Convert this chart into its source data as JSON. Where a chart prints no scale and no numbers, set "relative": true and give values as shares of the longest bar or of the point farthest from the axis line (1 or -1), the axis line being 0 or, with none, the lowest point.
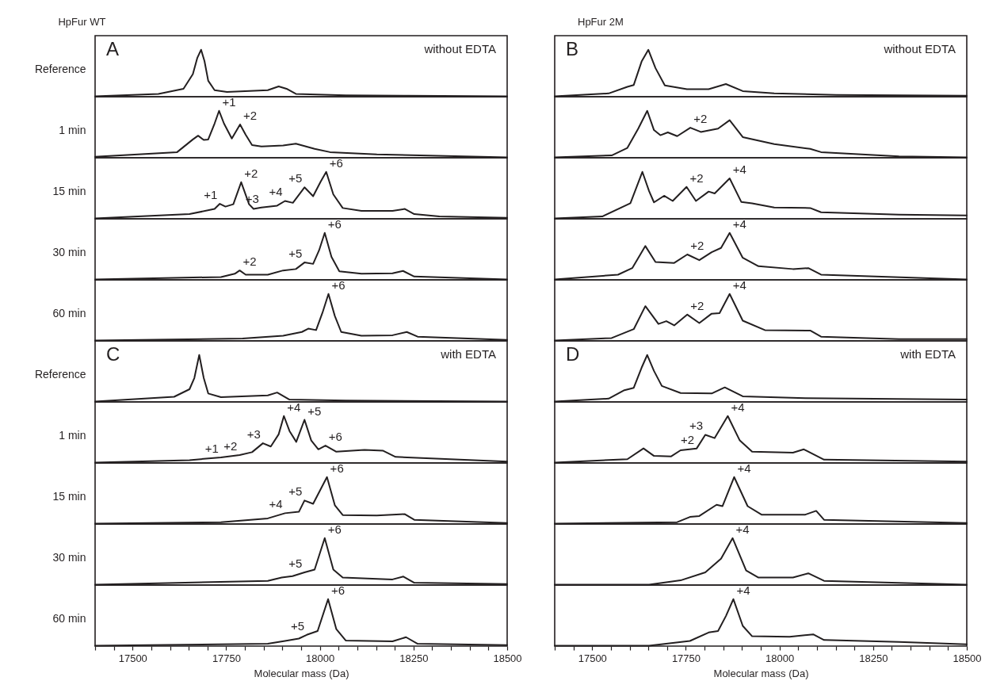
{
  "chart_data": [
    {
      "type": "line",
      "relative": true,
      "title": "HpFur WT",
      "ylabel": "Reference",
      "xlim": [
        17400,
        18500
      ],
      "annotations": [
        "A",
        "without EDTA"
      ],
      "x": [
        17400,
        17569,
        17636,
        17661,
        17673,
        17683,
        17692,
        17702,
        17719,
        17752,
        17861,
        17890,
        17911,
        17936,
        18069,
        18236,
        18500
      ],
      "series": [
        {
          "color": "#231f20",
          "values": [
            0.01,
            0.06,
            0.17,
            0.48,
            0.83,
            1.0,
            0.76,
            0.34,
            0.14,
            0.1,
            0.14,
            0.22,
            0.17,
            0.06,
            0.03,
            0.02,
            0.01
          ]
        }
      ]
    },
    {
      "type": "line",
      "relative": true,
      "ylabel": "1 min",
      "xlim": [
        17400,
        18500
      ],
      "annotations": [
        {
          "text": "+1",
          "x": 17731,
          "y": 1.0
        },
        {
          "text": "+2",
          "x": 17787,
          "y": 0.71
        }
      ],
      "x": [
        17400,
        17619,
        17661,
        17675,
        17690,
        17702,
        17719,
        17731,
        17744,
        17765,
        17787,
        17802,
        17819,
        17844,
        17902,
        17936,
        17986,
        18027,
        18152,
        18500
      ],
      "series": [
        {
          "color": "#231f20",
          "values": [
            0.02,
            0.12,
            0.39,
            0.47,
            0.38,
            0.39,
            0.73,
            1.0,
            0.73,
            0.41,
            0.71,
            0.49,
            0.27,
            0.24,
            0.26,
            0.3,
            0.19,
            0.12,
            0.07,
            0.01
          ]
        }
      ]
    },
    {
      "type": "line",
      "relative": true,
      "ylabel": "15 min",
      "xlim": [
        17400,
        18500
      ],
      "annotations": [
        {
          "text": "+1",
          "x": 17733,
          "y": 0.32
        },
        {
          "text": "+2",
          "x": 17790,
          "y": 0.78
        },
        {
          "text": "+3",
          "x": 17844,
          "y": 0.24
        },
        {
          "text": "+4",
          "x": 17907,
          "y": 0.38
        },
        {
          "text": "+5",
          "x": 17959,
          "y": 0.67
        },
        {
          "text": "+6",
          "x": 18017,
          "y": 1.0
        }
      ],
      "x": [
        17400,
        17652,
        17719,
        17733,
        17748,
        17769,
        17790,
        17811,
        17823,
        17844,
        17886,
        17907,
        17928,
        17959,
        17982,
        18002,
        18017,
        18036,
        18061,
        18111,
        18194,
        18227,
        18252,
        18319,
        18500
      ],
      "series": [
        {
          "color": "#231f20",
          "values": [
            0.01,
            0.1,
            0.21,
            0.32,
            0.26,
            0.31,
            0.78,
            0.31,
            0.21,
            0.24,
            0.28,
            0.38,
            0.34,
            0.67,
            0.48,
            0.79,
            1.0,
            0.52,
            0.23,
            0.17,
            0.17,
            0.21,
            0.1,
            0.05,
            0.02
          ]
        }
      ]
    },
    {
      "type": "line",
      "relative": true,
      "ylabel": "30 min",
      "xlim": [
        17400,
        18500
      ],
      "annotations": [
        {
          "text": "+2",
          "x": 17786,
          "y": 0.2
        },
        {
          "text": "+5",
          "x": 17959,
          "y": 0.37
        },
        {
          "text": "+6",
          "x": 18013,
          "y": 1.0
        }
      ],
      "x": [
        17400,
        17736,
        17773,
        17786,
        17802,
        17861,
        17902,
        17936,
        17959,
        17982,
        17998,
        18013,
        18031,
        18052,
        18111,
        18194,
        18222,
        18252,
        18500
      ],
      "series": [
        {
          "color": "#231f20",
          "values": [
            0.01,
            0.06,
            0.13,
            0.2,
            0.11,
            0.11,
            0.2,
            0.23,
            0.37,
            0.34,
            0.63,
            1.0,
            0.49,
            0.18,
            0.13,
            0.14,
            0.19,
            0.07,
            0.01
          ]
        }
      ]
    },
    {
      "type": "line",
      "relative": true,
      "ylabel": "60 min",
      "xlim": [
        17400,
        18500
      ],
      "annotations": [
        {
          "text": "+6",
          "x": 18023,
          "y": 1.0
        }
      ],
      "x": [
        17400,
        17794,
        17902,
        17952,
        17969,
        17990,
        18007,
        18023,
        18040,
        18057,
        18111,
        18194,
        18232,
        18261,
        18500
      ],
      "series": [
        {
          "color": "#231f20",
          "values": [
            0.01,
            0.05,
            0.11,
            0.19,
            0.26,
            0.23,
            0.6,
            1.0,
            0.53,
            0.19,
            0.11,
            0.12,
            0.19,
            0.09,
            0.02
          ]
        }
      ]
    },
    {
      "type": "line",
      "relative": true,
      "title": "HpFur 2M",
      "xlim": [
        17400,
        18500
      ],
      "annotations": [
        "B",
        "without EDTA"
      ],
      "x": [
        17400,
        17544,
        17594,
        17611,
        17632,
        17650,
        17669,
        17694,
        17753,
        17811,
        17857,
        17902,
        17986,
        18152,
        18500
      ],
      "series": [
        {
          "color": "#231f20",
          "values": [
            0.01,
            0.07,
            0.21,
            0.25,
            0.75,
            1.0,
            0.61,
            0.24,
            0.16,
            0.16,
            0.27,
            0.12,
            0.07,
            0.04,
            0.02
          ]
        }
      ]
    },
    {
      "type": "line",
      "relative": true,
      "xlim": [
        17400,
        18500
      ],
      "annotations": [
        {
          "text": "+2",
          "x": 17762,
          "y": 0.64
        }
      ],
      "x": [
        17400,
        17552,
        17594,
        17623,
        17647,
        17665,
        17682,
        17702,
        17727,
        17762,
        17790,
        17836,
        17867,
        17902,
        17986,
        18082,
        18111,
        18319,
        18500
      ],
      "series": [
        {
          "color": "#231f20",
          "values": [
            0.01,
            0.05,
            0.21,
            0.62,
            1.0,
            0.59,
            0.48,
            0.54,
            0.46,
            0.64,
            0.55,
            0.62,
            0.8,
            0.44,
            0.29,
            0.19,
            0.12,
            0.03,
            0.01
          ]
        }
      ]
    },
    {
      "type": "line",
      "relative": true,
      "xlim": [
        17400,
        18500
      ],
      "annotations": [
        {
          "text": "+2",
          "x": 17752,
          "y": 0.68
        },
        {
          "text": "+4",
          "x": 17867,
          "y": 0.86
        }
      ],
      "x": [
        17400,
        17527,
        17602,
        17634,
        17652,
        17665,
        17692,
        17715,
        17752,
        17777,
        17811,
        17827,
        17867,
        17898,
        17927,
        17986,
        18082,
        18111,
        18319,
        18500
      ],
      "series": [
        {
          "color": "#231f20",
          "values": [
            0.01,
            0.05,
            0.33,
            1.0,
            0.59,
            0.35,
            0.49,
            0.38,
            0.68,
            0.38,
            0.58,
            0.54,
            0.86,
            0.36,
            0.33,
            0.24,
            0.23,
            0.14,
            0.09,
            0.07
          ]
        }
      ]
    },
    {
      "type": "line",
      "relative": true,
      "xlim": [
        17400,
        18500
      ],
      "annotations": [
        {
          "text": "+2",
          "x": 17754,
          "y": 0.54
        },
        {
          "text": "+4",
          "x": 17867,
          "y": 1.0
        }
      ],
      "x": [
        17400,
        17569,
        17607,
        17642,
        17669,
        17719,
        17754,
        17786,
        17819,
        17844,
        17867,
        17902,
        17944,
        18036,
        18077,
        18111,
        18500
      ],
      "series": [
        {
          "color": "#231f20",
          "values": [
            0.01,
            0.11,
            0.25,
            0.72,
            0.38,
            0.36,
            0.54,
            0.42,
            0.59,
            0.68,
            1.0,
            0.47,
            0.29,
            0.23,
            0.25,
            0.11,
            0.01
          ]
        }
      ]
    },
    {
      "type": "line",
      "relative": true,
      "xlim": [
        17400,
        18500
      ],
      "annotations": [
        {
          "text": "+2",
          "x": 17754,
          "y": 0.56
        },
        {
          "text": "+4",
          "x": 17867,
          "y": 1.0
        }
      ],
      "x": [
        17400,
        17552,
        17611,
        17642,
        17677,
        17698,
        17719,
        17754,
        17786,
        17819,
        17840,
        17867,
        17902,
        17961,
        18082,
        18111,
        18319,
        18500
      ],
      "series": [
        {
          "color": "#231f20",
          "values": [
            0.01,
            0.06,
            0.25,
            0.74,
            0.36,
            0.42,
            0.33,
            0.56,
            0.38,
            0.58,
            0.59,
            1.0,
            0.43,
            0.23,
            0.22,
            0.09,
            0.04,
            0.04
          ]
        }
      ]
    },
    {
      "type": "line",
      "relative": true,
      "ylabel": "Reference",
      "xlim": [
        17400,
        18500
      ],
      "annotations": [
        "C",
        "with EDTA"
      ],
      "x": [
        17400,
        17611,
        17652,
        17665,
        17678,
        17690,
        17702,
        17736,
        17861,
        17886,
        17919,
        18069,
        18500
      ],
      "series": [
        {
          "color": "#231f20",
          "values": [
            0.01,
            0.11,
            0.27,
            0.51,
            1.0,
            0.51,
            0.18,
            0.1,
            0.14,
            0.2,
            0.05,
            0.03,
            0.01
          ]
        }
      ]
    },
    {
      "type": "line",
      "relative": true,
      "ylabel": "1 min",
      "xlim": [
        17400,
        18500
      ],
      "annotations": [
        {
          "text": "+1",
          "x": 17736,
          "y": 0.12
        },
        {
          "text": "+2",
          "x": 17786,
          "y": 0.17
        },
        {
          "text": "+3",
          "x": 17848,
          "y": 0.42
        },
        {
          "text": "+4",
          "x": 17904,
          "y": 1.0
        },
        {
          "text": "+5",
          "x": 17959,
          "y": 0.92
        },
        {
          "text": "+6",
          "x": 18015,
          "y": 0.37
        }
      ],
      "x": [
        17400,
        17652,
        17736,
        17786,
        17819,
        17848,
        17869,
        17890,
        17904,
        17919,
        17937,
        17959,
        17977,
        17996,
        18015,
        18044,
        18119,
        18169,
        18202,
        18500
      ],
      "series": [
        {
          "color": "#231f20",
          "values": [
            0.01,
            0.06,
            0.12,
            0.17,
            0.23,
            0.42,
            0.35,
            0.61,
            1.0,
            0.68,
            0.45,
            0.92,
            0.48,
            0.29,
            0.37,
            0.24,
            0.28,
            0.26,
            0.13,
            0.03
          ]
        }
      ]
    },
    {
      "type": "line",
      "relative": true,
      "ylabel": "15 min",
      "xlim": [
        17400,
        18500
      ],
      "annotations": [
        {
          "text": "+4",
          "x": 17907,
          "y": 0.23
        },
        {
          "text": "+5",
          "x": 17959,
          "y": 0.5
        },
        {
          "text": "+6",
          "x": 18019,
          "y": 1.0
        }
      ],
      "x": [
        17400,
        17736,
        17861,
        17907,
        17944,
        17959,
        17982,
        18002,
        18019,
        18040,
        18061,
        18152,
        18227,
        18252,
        18500
      ],
      "series": [
        {
          "color": "#231f20",
          "values": [
            0.01,
            0.04,
            0.12,
            0.23,
            0.26,
            0.5,
            0.43,
            0.74,
            1.0,
            0.4,
            0.19,
            0.18,
            0.21,
            0.09,
            0.02
          ]
        }
      ]
    },
    {
      "type": "line",
      "relative": true,
      "ylabel": "30 min",
      "xlim": [
        17400,
        18500
      ],
      "annotations": [
        {
          "text": "+5",
          "x": 17959,
          "y": 0.27
        },
        {
          "text": "+6",
          "x": 18013,
          "y": 1.0
        }
      ],
      "x": [
        17400,
        17861,
        17898,
        17927,
        17959,
        17986,
        18013,
        18036,
        18061,
        18194,
        18223,
        18252,
        18500
      ],
      "series": [
        {
          "color": "#231f20",
          "values": [
            0.01,
            0.09,
            0.16,
            0.19,
            0.27,
            0.33,
            1.0,
            0.33,
            0.16,
            0.12,
            0.18,
            0.05,
            0.02
          ]
        }
      ]
    },
    {
      "type": "line",
      "relative": true,
      "ylabel": "60 min",
      "xlabel": "Molecular mass (Da)",
      "xlim": [
        17400,
        18500
      ],
      "tick_labels": "x",
      "annotations": [
        {
          "text": "+5",
          "x": 17965,
          "y": 0.24
        },
        {
          "text": "+6",
          "x": 18022,
          "y": 1.0
        }
      ],
      "xticks": [
        {
          "value": 17400,
          "label": null
        },
        {
          "value": 17450,
          "label": null
        },
        17500,
        {
          "value": 17550,
          "label": null
        },
        {
          "value": 17600,
          "label": null
        },
        {
          "value": 17650,
          "label": null
        },
        {
          "value": 17700,
          "label": null
        },
        17750,
        {
          "value": 17800,
          "label": null
        },
        {
          "value": 17850,
          "label": null
        },
        {
          "value": 17900,
          "label": null
        },
        {
          "value": 17950,
          "label": null
        },
        18000,
        {
          "value": 18050,
          "label": null
        },
        {
          "value": 18100,
          "label": null
        },
        {
          "value": 18150,
          "label": null
        },
        {
          "value": 18200,
          "label": null
        },
        18250,
        {
          "value": 18300,
          "label": null
        },
        {
          "value": 18350,
          "label": null
        },
        {
          "value": 18400,
          "label": null
        },
        {
          "value": 18450,
          "label": null
        },
        18500
      ],
      "x": [
        17400,
        17861,
        17907,
        17944,
        17965,
        17994,
        18022,
        18044,
        18069,
        18194,
        18230,
        18261,
        18500
      ],
      "series": [
        {
          "color": "#231f20",
          "values": [
            0.01,
            0.05,
            0.11,
            0.16,
            0.24,
            0.32,
            1.0,
            0.36,
            0.12,
            0.1,
            0.19,
            0.05,
            0.02
          ]
        }
      ]
    },
    {
      "type": "line",
      "relative": true,
      "xlim": [
        17400,
        18500
      ],
      "annotations": [
        "D",
        "with EDTA"
      ],
      "x": [
        17400,
        17544,
        17586,
        17611,
        17632,
        17647,
        17665,
        17686,
        17736,
        17819,
        17854,
        17902,
        18069,
        18500
      ],
      "series": [
        {
          "color": "#231f20",
          "values": [
            0.01,
            0.07,
            0.25,
            0.3,
            0.73,
            1.0,
            0.66,
            0.34,
            0.19,
            0.18,
            0.31,
            0.12,
            0.08,
            0.05
          ]
        }
      ]
    },
    {
      "type": "line",
      "relative": true,
      "xlim": [
        17400,
        18500
      ],
      "annotations": [
        {
          "text": "+2",
          "x": 17779,
          "y": 0.31
        },
        {
          "text": "+3",
          "x": 17802,
          "y": 0.6
        },
        {
          "text": "+4",
          "x": 17862,
          "y": 1.0
        }
      ],
      "x": [
        17400,
        17594,
        17637,
        17665,
        17711,
        17736,
        17779,
        17802,
        17827,
        17862,
        17894,
        17927,
        18036,
        18065,
        18119,
        18500
      ],
      "series": [
        {
          "color": "#231f20",
          "values": [
            0.01,
            0.08,
            0.31,
            0.15,
            0.14,
            0.27,
            0.31,
            0.6,
            0.53,
            1.0,
            0.48,
            0.24,
            0.22,
            0.29,
            0.07,
            0.03
          ]
        }
      ]
    },
    {
      "type": "line",
      "relative": true,
      "xlim": [
        17400,
        18500
      ],
      "annotations": [
        {
          "text": "+4",
          "x": 17879,
          "y": 1.0
        }
      ],
      "x": [
        17400,
        17727,
        17761,
        17786,
        17832,
        17848,
        17879,
        17915,
        17952,
        18069,
        18098,
        18119,
        18500
      ],
      "series": [
        {
          "color": "#231f20",
          "values": [
            0.01,
            0.04,
            0.15,
            0.17,
            0.41,
            0.38,
            1.0,
            0.38,
            0.2,
            0.2,
            0.28,
            0.09,
            0.02
          ]
        }
      ]
    },
    {
      "type": "line",
      "relative": true,
      "xlim": [
        17400,
        18500
      ],
      "annotations": [
        {
          "text": "+4",
          "x": 17875,
          "y": 1.0
        }
      ],
      "x": [
        17400,
        17652,
        17736,
        17802,
        17844,
        17875,
        17911,
        17944,
        18036,
        18077,
        18119,
        18500
      ],
      "series": [
        {
          "color": "#231f20",
          "values": [
            0.01,
            0.01,
            0.1,
            0.27,
            0.56,
            1.0,
            0.31,
            0.16,
            0.16,
            0.25,
            0.09,
            0.01
          ]
        }
      ]
    },
    {
      "type": "line",
      "relative": true,
      "xlabel": "Molecular mass (Da)",
      "xlim": [
        17400,
        18500
      ],
      "tick_labels": "x",
      "annotations": [
        {
          "text": "+4",
          "x": 17877,
          "y": 1.0
        }
      ],
      "xticks": [
        {
          "value": 17400,
          "label": null
        },
        {
          "value": 17450,
          "label": null
        },
        17500,
        {
          "value": 17550,
          "label": null
        },
        {
          "value": 17600,
          "label": null
        },
        {
          "value": 17650,
          "label": null
        },
        {
          "value": 17700,
          "label": null
        },
        17750,
        {
          "value": 17800,
          "label": null
        },
        {
          "value": 17850,
          "label": null
        },
        {
          "value": 17900,
          "label": null
        },
        {
          "value": 17950,
          "label": null
        },
        18000,
        {
          "value": 18050,
          "label": null
        },
        {
          "value": 18100,
          "label": null
        },
        {
          "value": 18150,
          "label": null
        },
        {
          "value": 18200,
          "label": null
        },
        18250,
        {
          "value": 18300,
          "label": null
        },
        {
          "value": 18350,
          "label": null
        },
        {
          "value": 18400,
          "label": null
        },
        {
          "value": 18450,
          "label": null
        },
        18500
      ],
      "x": [
        17400,
        17652,
        17761,
        17811,
        17836,
        17857,
        17877,
        17902,
        17927,
        18027,
        18090,
        18119,
        18319,
        18500
      ],
      "series": [
        {
          "color": "#231f20",
          "values": [
            0.01,
            0.01,
            0.11,
            0.29,
            0.32,
            0.64,
            1.0,
            0.43,
            0.21,
            0.2,
            0.25,
            0.13,
            0.09,
            0.04
          ]
        }
      ]
    }
  ]
}
